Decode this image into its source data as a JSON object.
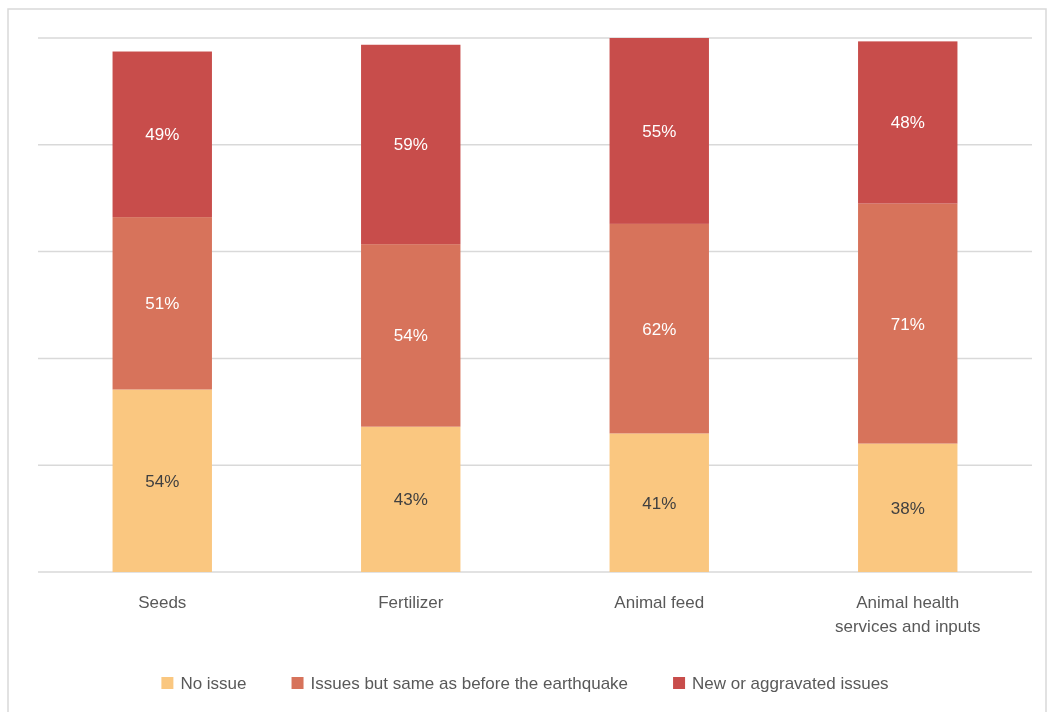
{
  "chart_data": {
    "type": "bar",
    "stacked": true,
    "categories": [
      "Seeds",
      "Fertilizer",
      "Animal feed",
      "Animal health services and inputs"
    ],
    "series": [
      {
        "name": "No issue",
        "color": "#fac780",
        "values": [
          54,
          43,
          41,
          38
        ],
        "value_labels": [
          "54%",
          "43%",
          "41%",
          "38%"
        ]
      },
      {
        "name": "Issues but same as before the earthquake",
        "color": "#d7735b",
        "values": [
          51,
          54,
          62,
          71
        ],
        "value_labels": [
          "51%",
          "54%",
          "62%",
          "71%"
        ]
      },
      {
        "name": "New or aggravated issues",
        "color": "#c84d4b",
        "values": [
          49,
          59,
          55,
          48
        ],
        "value_labels": [
          "49%",
          "59%",
          "55%",
          "48%"
        ]
      }
    ],
    "tick_labels": "x",
    "grid": "y",
    "legend": "bottom"
  }
}
